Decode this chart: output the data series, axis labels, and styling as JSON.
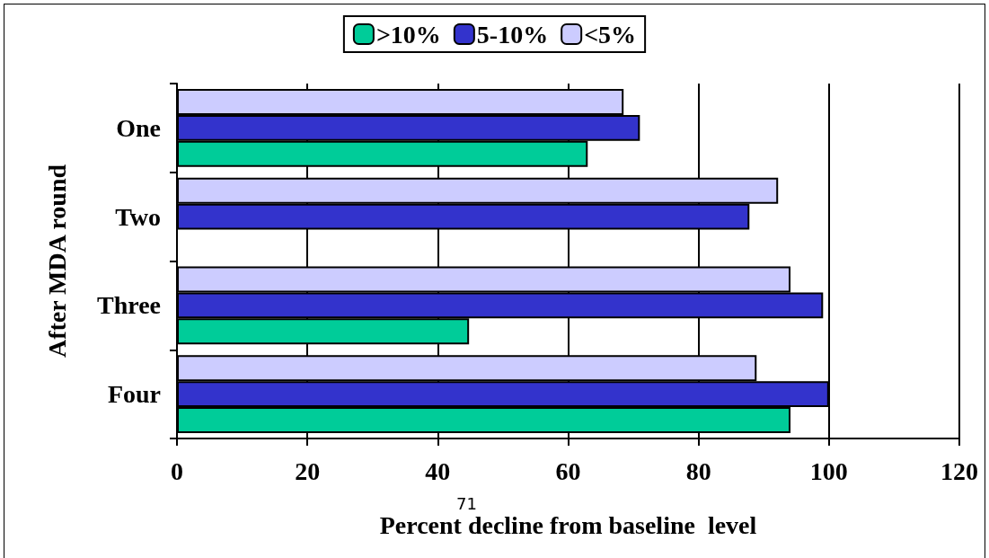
{
  "chart_data": {
    "type": "bar",
    "orientation": "horizontal",
    "categories": [
      "One",
      "Two",
      "Three",
      "Four"
    ],
    "series": [
      {
        "name": ">10%",
        "color": "#00cc99",
        "values": [
          63,
          null,
          44.8,
          94.1
        ]
      },
      {
        "name": "5-10%",
        "color": "#3333cc",
        "values": [
          71,
          87.8,
          99.1,
          100
        ]
      },
      {
        "name": "<5%",
        "color": "#ccccff",
        "values": [
          68.5,
          92.2,
          94.1,
          88.9
        ]
      }
    ],
    "xlabel": "Percent decline from baseline  level",
    "ylabel": "After MDA round",
    "xlim": [
      0,
      120
    ],
    "xticks": [
      0,
      20,
      40,
      60,
      80,
      100,
      120
    ],
    "grid": "x",
    "legend": "top",
    "annotations": [
      "71"
    ]
  }
}
